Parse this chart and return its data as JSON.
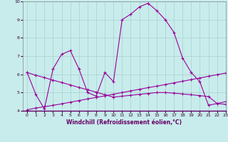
{
  "xlabel": "Windchill (Refroidissement éolien,°C)",
  "background_color": "#c8ecec",
  "grid_color": "#a8d0d0",
  "line_color": "#990099",
  "axis_label_color": "#660066",
  "xlim": [
    -0.5,
    23
  ],
  "ylim": [
    4,
    10
  ],
  "xticks": [
    0,
    1,
    2,
    3,
    4,
    5,
    6,
    7,
    8,
    9,
    10,
    11,
    12,
    13,
    14,
    15,
    16,
    17,
    18,
    19,
    20,
    21,
    22,
    23
  ],
  "yticks": [
    4,
    5,
    6,
    7,
    8,
    9,
    10
  ],
  "x": [
    0,
    1,
    2,
    3,
    4,
    5,
    6,
    7,
    8,
    9,
    10,
    11,
    12,
    13,
    14,
    15,
    16,
    17,
    18,
    19,
    20,
    21,
    22,
    23
  ],
  "y_main": [
    6.1,
    4.9,
    4.1,
    6.3,
    7.1,
    7.3,
    6.3,
    5.0,
    4.8,
    6.1,
    5.6,
    9.0,
    9.3,
    9.7,
    9.9,
    9.5,
    9.0,
    8.3,
    6.9,
    6.1,
    5.6,
    4.3,
    4.4,
    4.5
  ],
  "y_trend1": [
    4.05,
    4.15,
    4.22,
    4.3,
    4.38,
    4.47,
    4.56,
    4.65,
    4.73,
    4.82,
    4.91,
    5.0,
    5.09,
    5.18,
    5.27,
    5.35,
    5.44,
    5.53,
    5.62,
    5.71,
    5.8,
    5.89,
    5.98,
    6.07
  ],
  "y_trend2": [
    6.1,
    5.95,
    5.82,
    5.68,
    5.55,
    5.42,
    5.28,
    5.15,
    5.02,
    4.88,
    4.75,
    4.8,
    4.85,
    4.9,
    4.95,
    5.0,
    5.0,
    4.97,
    4.92,
    4.88,
    4.83,
    4.78,
    4.4,
    4.35
  ]
}
